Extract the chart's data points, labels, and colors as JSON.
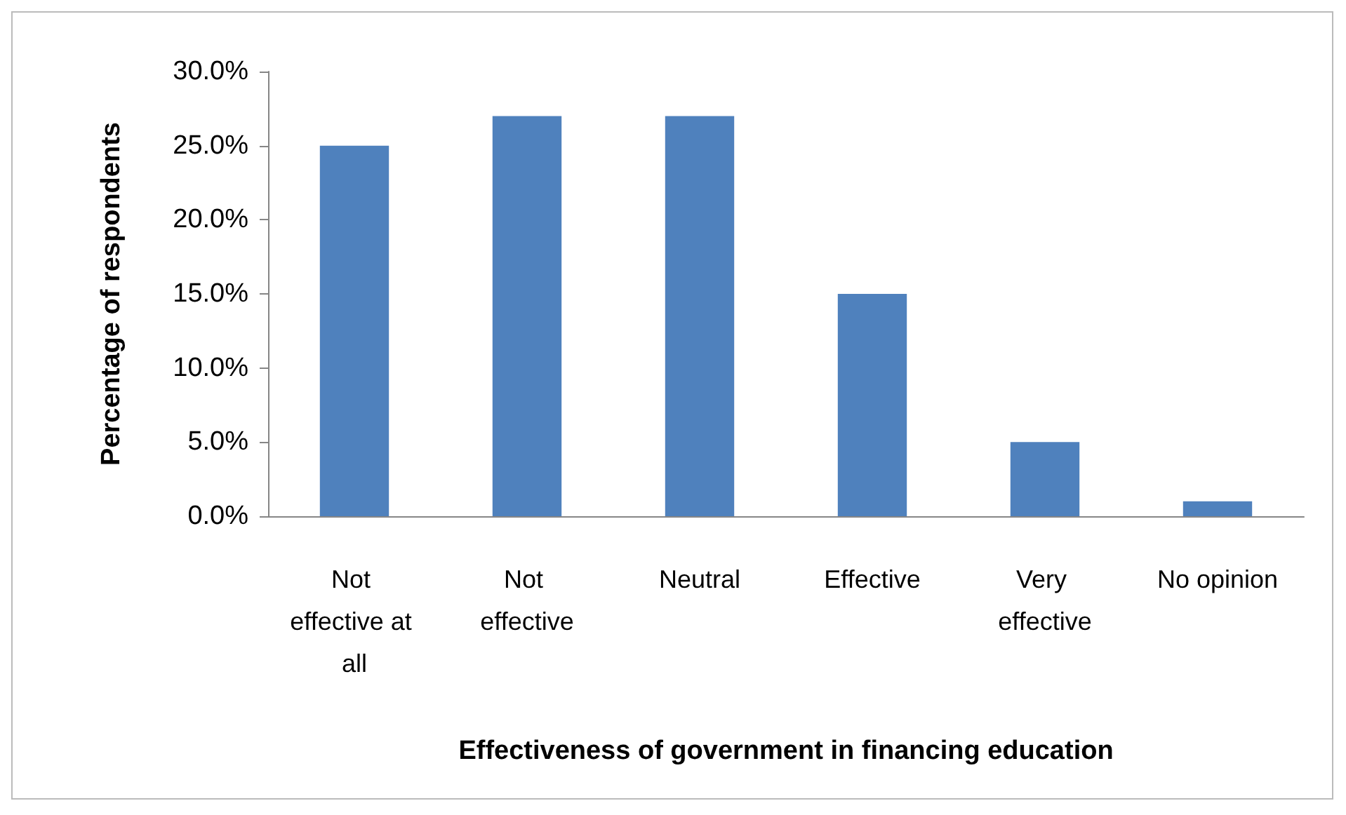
{
  "chart_data": {
    "type": "bar",
    "xlabel": "Effectiveness of government in financing education",
    "ylabel": "Percentage of respondents",
    "categories": [
      "Not effective at all",
      "Not effective",
      "Neutral",
      "Effective",
      "Very effective",
      "No opinion"
    ],
    "values": [
      25,
      27,
      27,
      15,
      5,
      1
    ],
    "color": "#4f81bd",
    "ylim": [
      0,
      30
    ],
    "yticks": [
      {
        "value": 0,
        "label": "0.0%"
      },
      {
        "value": 5,
        "label": "5.0%"
      },
      {
        "value": 10,
        "label": "10.0%"
      },
      {
        "value": 15,
        "label": "15.0%"
      },
      {
        "value": 20,
        "label": "20.0%"
      },
      {
        "value": 25,
        "label": "25.0%"
      },
      {
        "value": 30,
        "label": "30.0%"
      }
    ],
    "grid": false
  }
}
